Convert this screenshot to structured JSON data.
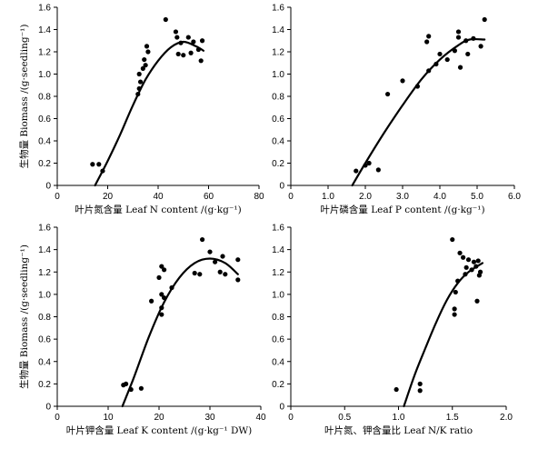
{
  "chart_data": [
    {
      "id": "n",
      "type": "scatter",
      "xlabel": "叶片氮含量 Leaf N content /(g·kg⁻¹)",
      "ylabel": "生物量 Biomass /(g·seedling⁻¹)",
      "xlim": [
        0,
        80
      ],
      "ylim": [
        0,
        1.6
      ],
      "xticks": [
        0,
        20,
        40,
        60,
        80
      ],
      "xtick_labels": [
        "0",
        "20",
        "40",
        "60",
        "80"
      ],
      "yticks": [
        0,
        0.2,
        0.4,
        0.6,
        0.8,
        1.0,
        1.2,
        1.4,
        1.6
      ],
      "ytick_labels": [
        "0",
        "0.2",
        "0.4",
        "0.6",
        "0.8",
        "1.0",
        "1.2",
        "1.4",
        "1.6"
      ],
      "points": [
        [
          14,
          0.19
        ],
        [
          16.5,
          0.19
        ],
        [
          18,
          0.13
        ],
        [
          32,
          0.82
        ],
        [
          32.5,
          0.87
        ],
        [
          33,
          0.93
        ],
        [
          32.5,
          1.0
        ],
        [
          34,
          1.05
        ],
        [
          34.5,
          1.13
        ],
        [
          35,
          1.08
        ],
        [
          35.5,
          1.25
        ],
        [
          36,
          1.2
        ],
        [
          43,
          1.49
        ],
        [
          47,
          1.38
        ],
        [
          47.5,
          1.33
        ],
        [
          48,
          1.18
        ],
        [
          49,
          1.28
        ],
        [
          50,
          1.17
        ],
        [
          52,
          1.33
        ],
        [
          53,
          1.19
        ],
        [
          54,
          1.29
        ],
        [
          56,
          1.22
        ],
        [
          57,
          1.12
        ],
        [
          57.5,
          1.3
        ]
      ],
      "fit": [
        [
          15,
          0
        ],
        [
          20,
          0.22
        ],
        [
          25,
          0.46
        ],
        [
          30,
          0.72
        ],
        [
          35,
          0.95
        ],
        [
          40,
          1.12
        ],
        [
          45,
          1.24
        ],
        [
          50,
          1.29
        ],
        [
          55,
          1.25
        ],
        [
          58,
          1.21
        ]
      ]
    },
    {
      "id": "p",
      "type": "scatter",
      "xlabel": "叶片磷含量 Leaf P content /(g·kg⁻¹)",
      "ylabel": "",
      "xlim": [
        0,
        6
      ],
      "ylim": [
        0,
        1.6
      ],
      "xticks": [
        0,
        1,
        2,
        3,
        4,
        5,
        6
      ],
      "xtick_labels": [
        "0",
        "1.0",
        "2.0",
        "3.0",
        "4.0",
        "5.0",
        "6.0"
      ],
      "yticks": [
        0,
        0.2,
        0.4,
        0.6,
        0.8,
        1.0,
        1.2,
        1.4,
        1.6
      ],
      "ytick_labels": [
        "0",
        "0.2",
        "0.4",
        "0.6",
        "0.8",
        "1.0",
        "1.2",
        "1.4",
        "1.6"
      ],
      "points": [
        [
          1.75,
          0.13
        ],
        [
          2.0,
          0.18
        ],
        [
          2.1,
          0.2
        ],
        [
          2.35,
          0.14
        ],
        [
          2.6,
          0.82
        ],
        [
          3.0,
          0.94
        ],
        [
          3.4,
          0.89
        ],
        [
          3.65,
          1.29
        ],
        [
          3.7,
          1.34
        ],
        [
          3.7,
          1.03
        ],
        [
          3.9,
          1.09
        ],
        [
          4.0,
          1.18
        ],
        [
          4.2,
          1.13
        ],
        [
          4.4,
          1.21
        ],
        [
          4.5,
          1.33
        ],
        [
          4.5,
          1.38
        ],
        [
          4.55,
          1.06
        ],
        [
          4.7,
          1.3
        ],
        [
          4.75,
          1.18
        ],
        [
          4.9,
          1.32
        ],
        [
          5.1,
          1.25
        ],
        [
          5.2,
          1.49
        ]
      ],
      "fit": [
        [
          1.65,
          0
        ],
        [
          2.0,
          0.2
        ],
        [
          2.5,
          0.47
        ],
        [
          3.0,
          0.72
        ],
        [
          3.5,
          0.95
        ],
        [
          4.0,
          1.13
        ],
        [
          4.5,
          1.26
        ],
        [
          4.8,
          1.31
        ],
        [
          5.2,
          1.31
        ]
      ]
    },
    {
      "id": "k",
      "type": "scatter",
      "xlabel": "叶片钾含量 Leaf K content /(g·kg⁻¹ DW)",
      "ylabel": "生物量 Biomass /(g·seedling⁻¹)",
      "xlim": [
        0,
        40
      ],
      "ylim": [
        0,
        1.6
      ],
      "xticks": [
        0,
        10,
        20,
        30,
        40
      ],
      "xtick_labels": [
        "0",
        "10",
        "20",
        "30",
        "40"
      ],
      "yticks": [
        0,
        0.2,
        0.4,
        0.6,
        0.8,
        1.0,
        1.2,
        1.4,
        1.6
      ],
      "ytick_labels": [
        "0",
        "0.2",
        "0.4",
        "0.6",
        "0.8",
        "1.0",
        "1.2",
        "1.4",
        "1.6"
      ],
      "points": [
        [
          13,
          0.19
        ],
        [
          13.5,
          0.2
        ],
        [
          14.5,
          0.15
        ],
        [
          16.5,
          0.16
        ],
        [
          18.5,
          0.94
        ],
        [
          20,
          1.15
        ],
        [
          20.5,
          1.25
        ],
        [
          21,
          1.22
        ],
        [
          20.5,
          0.88
        ],
        [
          20.5,
          0.82
        ],
        [
          20.5,
          1.0
        ],
        [
          21,
          0.97
        ],
        [
          22.5,
          1.06
        ],
        [
          27,
          1.19
        ],
        [
          28,
          1.18
        ],
        [
          28.5,
          1.49
        ],
        [
          30,
          1.38
        ],
        [
          31,
          1.29
        ],
        [
          32,
          1.2
        ],
        [
          32.5,
          1.34
        ],
        [
          33,
          1.18
        ],
        [
          35.5,
          1.13
        ],
        [
          35.5,
          1.31
        ]
      ],
      "fit": [
        [
          12.8,
          0
        ],
        [
          15,
          0.25
        ],
        [
          18,
          0.62
        ],
        [
          21,
          0.93
        ],
        [
          24,
          1.15
        ],
        [
          27,
          1.28
        ],
        [
          30,
          1.32
        ],
        [
          33,
          1.28
        ],
        [
          35.5,
          1.18
        ]
      ]
    },
    {
      "id": "nk",
      "type": "scatter",
      "xlabel": "叶片氮、钾含量比  Leaf N/K ratio",
      "ylabel": "",
      "xlim": [
        0,
        2
      ],
      "ylim": [
        0,
        1.6
      ],
      "xticks": [
        0,
        0.5,
        1,
        1.5,
        2
      ],
      "xtick_labels": [
        "0",
        "0.5",
        "1.0",
        "1.5",
        "2.0"
      ],
      "yticks": [
        0,
        0.2,
        0.4,
        0.6,
        0.8,
        1.0,
        1.2,
        1.4,
        1.6
      ],
      "ytick_labels": [
        "0",
        "0.2",
        "0.4",
        "0.6",
        "0.8",
        "1.0",
        "1.2",
        "1.4",
        "1.6"
      ],
      "points": [
        [
          0.98,
          0.15
        ],
        [
          1.2,
          0.14
        ],
        [
          1.2,
          0.2
        ],
        [
          1.5,
          1.49
        ],
        [
          1.52,
          0.82
        ],
        [
          1.52,
          0.87
        ],
        [
          1.53,
          1.02
        ],
        [
          1.55,
          1.12
        ],
        [
          1.57,
          1.37
        ],
        [
          1.6,
          1.33
        ],
        [
          1.62,
          1.18
        ],
        [
          1.63,
          1.24
        ],
        [
          1.65,
          1.31
        ],
        [
          1.68,
          1.22
        ],
        [
          1.7,
          1.29
        ],
        [
          1.72,
          1.25
        ],
        [
          1.73,
          0.94
        ],
        [
          1.74,
          1.3
        ],
        [
          1.75,
          1.17
        ],
        [
          1.76,
          1.2
        ]
      ],
      "fit": [
        [
          1.05,
          0
        ],
        [
          1.15,
          0.28
        ],
        [
          1.25,
          0.52
        ],
        [
          1.35,
          0.75
        ],
        [
          1.45,
          0.95
        ],
        [
          1.55,
          1.1
        ],
        [
          1.65,
          1.2
        ],
        [
          1.78,
          1.28
        ]
      ]
    }
  ]
}
